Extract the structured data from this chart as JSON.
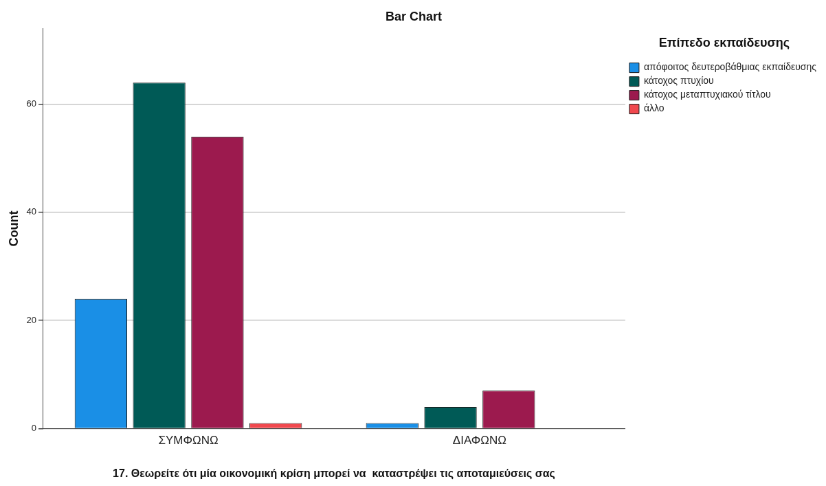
{
  "chart_data": {
    "type": "bar",
    "title": "Bar Chart",
    "xlabel": "17. Θεωρείτε ότι μία οικονομική κρίση μπορεί να  καταστρέψει τις αποταμιεύσεις σας",
    "ylabel": "Count",
    "legend_title": "Επίπεδο εκπαίδευσης",
    "categories": [
      "ΣΥΜΦΩΝΩ",
      "ΔΙΑΦΩΝΩ"
    ],
    "series": [
      {
        "name": "απόφοιτος δευτεροβάθμιας εκπαίδευσης",
        "color": "#1a8fe6",
        "values": [
          24,
          1
        ]
      },
      {
        "name": "κάτοχος πτυχίου",
        "color": "#005a56",
        "values": [
          64,
          4
        ]
      },
      {
        "name": "κάτοχος μεταπτυχιακού τίτλου",
        "color": "#9c1a4e",
        "values": [
          54,
          7
        ]
      },
      {
        "name": "άλλο",
        "color": "#f0484e",
        "values": [
          1,
          null
        ]
      }
    ],
    "ylim": [
      0,
      74
    ],
    "yticks": [
      0,
      20,
      40,
      60
    ],
    "grid": "y",
    "legend": "top right"
  }
}
